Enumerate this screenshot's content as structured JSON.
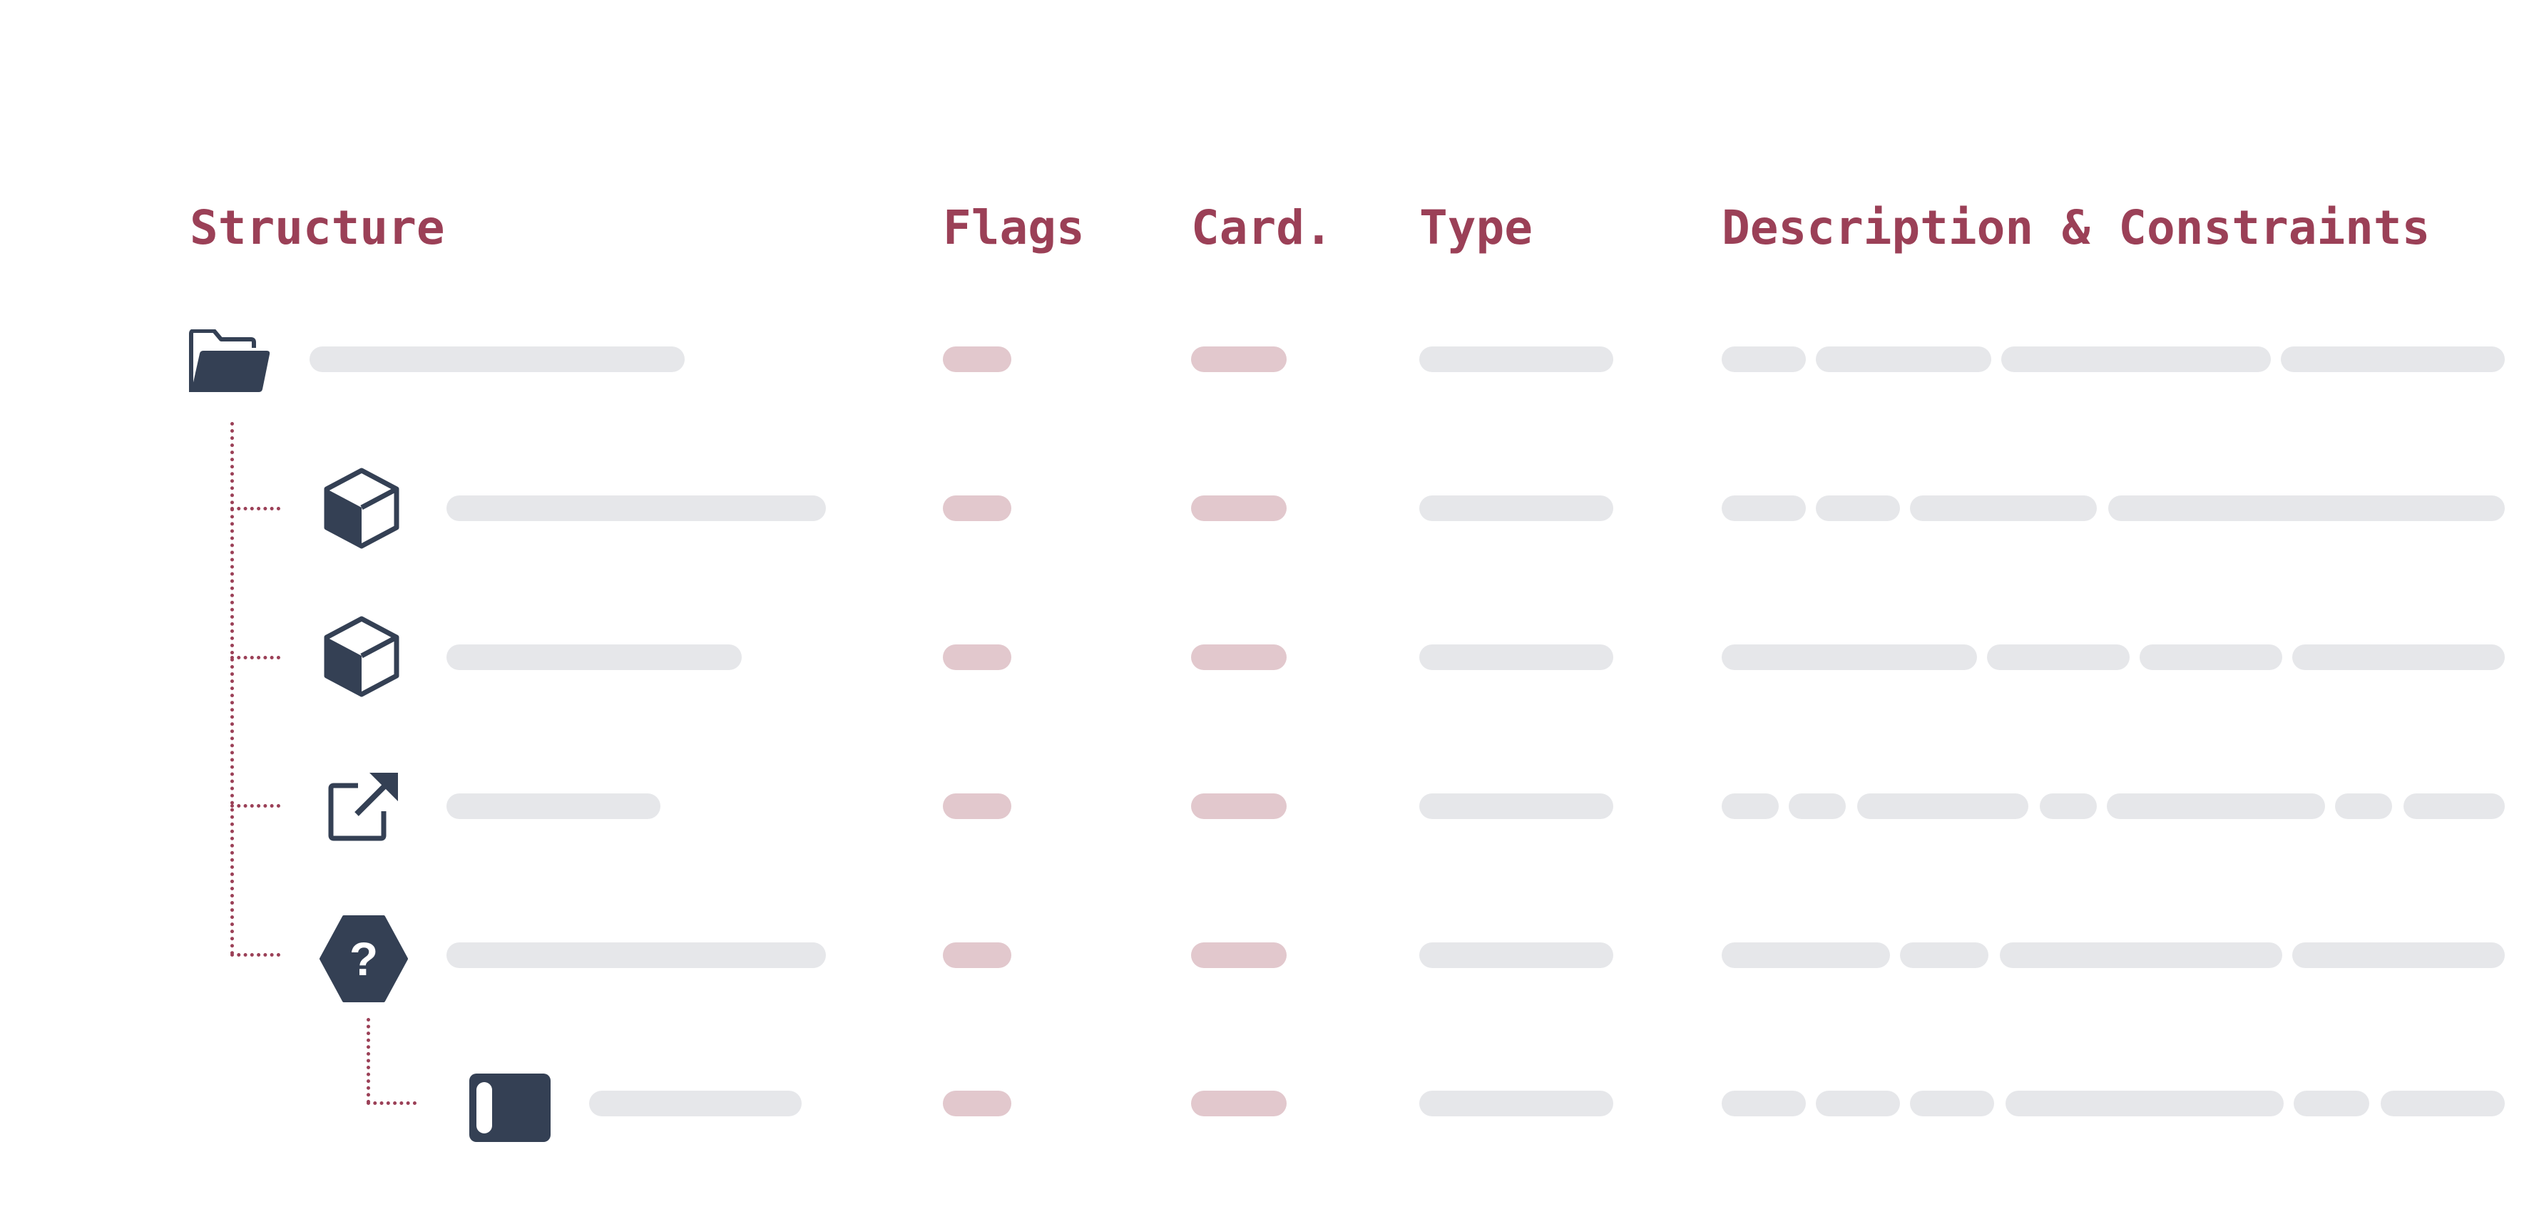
{
  "headers": {
    "structure": "Structure",
    "flags": "Flags",
    "cardinality": "Card.",
    "type": "Type",
    "description": "Description & Constraints"
  },
  "colors": {
    "header_text": "#9b4057",
    "icon": "#344054",
    "placeholder_gray": "#e6e7ea",
    "placeholder_rose": "#e2c8cd",
    "tree_line": "#9b4057"
  },
  "rows": [
    {
      "icon": "folder-open-icon",
      "level": 0
    },
    {
      "icon": "cube-icon",
      "level": 1
    },
    {
      "icon": "cube-icon",
      "level": 1
    },
    {
      "icon": "external-reference-icon",
      "level": 1
    },
    {
      "icon": "question-hexagon-icon",
      "level": 1
    },
    {
      "icon": "primitive-element-icon",
      "level": 2
    }
  ]
}
